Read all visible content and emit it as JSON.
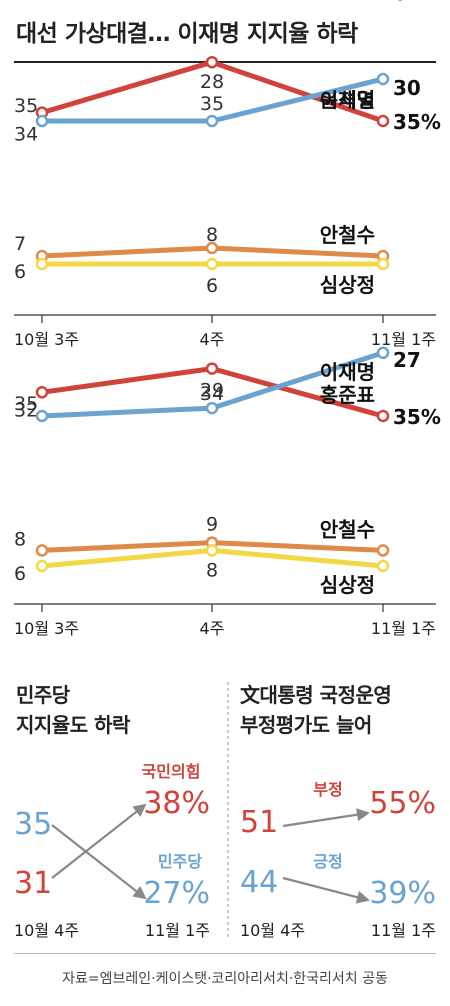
{
  "title": "대선 가상대결… 이재명 지지율 하락",
  "source": "자료=엠브레인·케이스탯·코리아리서치·한국리서치 공동",
  "colors": {
    "red": "#d0433b",
    "blue": "#6aa3cf",
    "orange": "#e08a47",
    "yellow": "#f3d846",
    "gray": "#888888"
  },
  "chart_data": [
    {
      "type": "line",
      "x": [
        "10월 3주",
        "4주",
        "11월 1주"
      ],
      "series": [
        {
          "name": "윤석열",
          "values": [
            34,
            28,
            35
          ],
          "color": "#d0433b",
          "end_label": "35%"
        },
        {
          "name": "이재명",
          "values": [
            35,
            35,
            30
          ],
          "color": "#6aa3cf",
          "end_label": "30"
        },
        {
          "name": "안철수",
          "values": [
            7,
            8,
            7
          ],
          "color": "#e08a47",
          "end_label": "7"
        },
        {
          "name": "심상정",
          "values": [
            6,
            6,
            6
          ],
          "color": "#f3d846",
          "end_label": "6"
        }
      ]
    },
    {
      "type": "line",
      "x": [
        "10월 3주",
        "4주",
        "11월 1주"
      ],
      "series": [
        {
          "name": "홍준표",
          "values": [
            32,
            29,
            35
          ],
          "color": "#d0433b",
          "end_label": "35%"
        },
        {
          "name": "이재명",
          "values": [
            35,
            34,
            27
          ],
          "color": "#6aa3cf",
          "end_label": "27"
        },
        {
          "name": "안철수",
          "values": [
            8,
            9,
            8
          ],
          "color": "#e08a47",
          "end_label": "8"
        },
        {
          "name": "심상정",
          "values": [
            6,
            8,
            6
          ],
          "color": "#f3d846",
          "end_label": "6"
        }
      ]
    },
    {
      "type": "line",
      "title_lines": [
        "민주당",
        "지지율도 하락"
      ],
      "x": [
        "10월 4주",
        "11월 1주"
      ],
      "series": [
        {
          "name": "국민의힘",
          "values": [
            31,
            38
          ],
          "color": "#d0433b",
          "end_label": "38%"
        },
        {
          "name": "민주당",
          "values": [
            35,
            27
          ],
          "color": "#6aa3cf",
          "end_label": "27%"
        }
      ]
    },
    {
      "type": "line",
      "title_lines": [
        "文대통령 국정운영",
        "부정평가도 늘어"
      ],
      "x": [
        "10월 4주",
        "11월 1주"
      ],
      "series": [
        {
          "name": "부정",
          "values": [
            51,
            55
          ],
          "color": "#d0433b",
          "end_label": "55%"
        },
        {
          "name": "긍정",
          "values": [
            44,
            39
          ],
          "color": "#6aa3cf",
          "end_label": "39%"
        }
      ]
    }
  ]
}
